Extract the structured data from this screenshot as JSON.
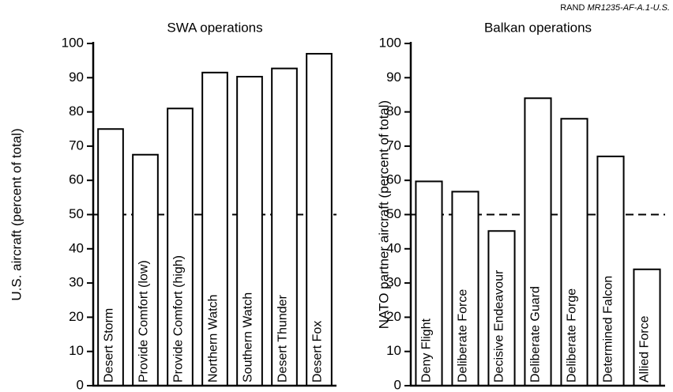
{
  "source": {
    "prefix": "RAND",
    "id": "MR1235-AF-A.1-U.S."
  },
  "chart_data": [
    {
      "type": "bar",
      "title": "SWA operations",
      "y_label": "U.S. aircraft (percent of total)",
      "categories": [
        "Desert Storm",
        "Provide Comfort (low)",
        "Provide Comfort (high)",
        "Northern Watch",
        "Southern Watch",
        "Desert Thunder",
        "Desert Fox"
      ],
      "values": [
        75,
        67.5,
        81,
        91.5,
        90.3,
        92.7,
        97
      ],
      "color": "#ffffff",
      "ylim": [
        0,
        100
      ],
      "yticks": [
        0,
        10,
        20,
        30,
        40,
        50,
        60,
        70,
        80,
        90,
        100
      ],
      "reference_line": 50,
      "grid": false
    },
    {
      "type": "bar",
      "title": "Balkan operations",
      "y_label": "NATO partner aircraft (percent of total)",
      "categories": [
        "Deny Flight",
        "Deliberate Force",
        "Decisive Endeavour",
        "Deliberate Guard",
        "Deliberate Forge",
        "Determined Falcon",
        "Allied Force"
      ],
      "values": [
        59.7,
        56.7,
        45.2,
        84,
        78,
        67,
        34
      ],
      "color": "#ffffff",
      "ylim": [
        0,
        100
      ],
      "yticks": [
        0,
        10,
        20,
        30,
        40,
        50,
        60,
        70,
        80,
        90,
        100
      ],
      "reference_line": 50,
      "grid": false
    }
  ]
}
